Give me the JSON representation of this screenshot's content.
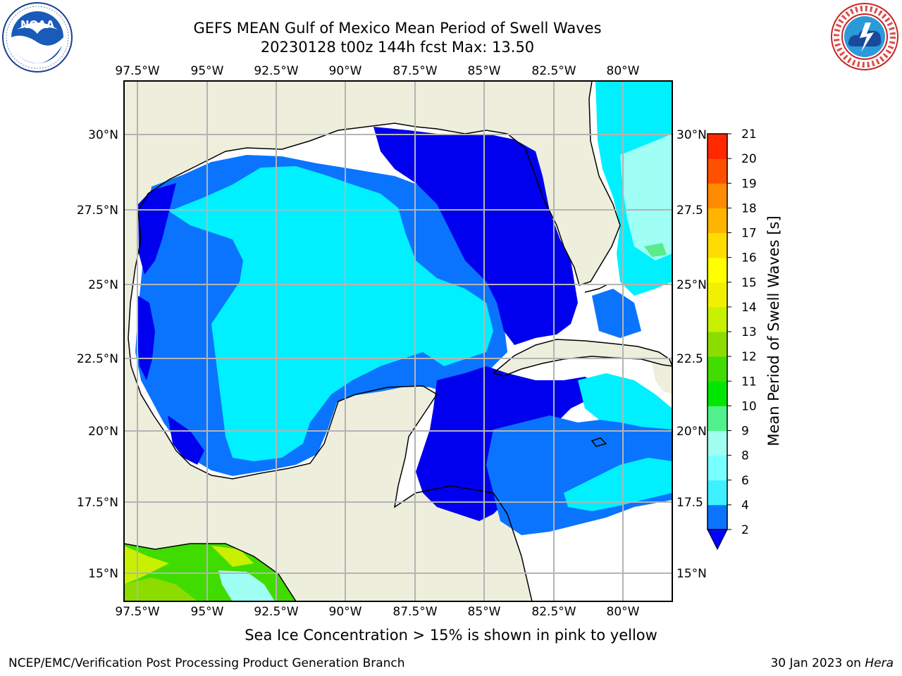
{
  "title_line1": "GEFS MEAN Gulf of Mexico Mean Period of Swell Waves",
  "title_line2": "20230128 t00z 144h fcst   Max: 13.50",
  "logos": {
    "noaa": {
      "text": "NOAA",
      "ring_text": "NATIONAL OCEANIC AND ATMOSPHERIC ADMINISTRATION · U.S. DEPARTMENT OF COMMERCE"
    },
    "nws": {
      "ring_text": "NATIONAL WEATHER SERVICE"
    }
  },
  "map": {
    "lon_labels": [
      "97.5°W",
      "95°W",
      "92.5°W",
      "90°W",
      "87.5°W",
      "85°W",
      "82.5°W",
      "80°W"
    ],
    "lat_labels_left": [
      "30°N",
      "27.5°N",
      "25°N",
      "22.5°N",
      "20°N",
      "17.5°N",
      "15°N"
    ],
    "lat_labels_right": [
      "30°N",
      "27.5",
      "25°N",
      "22.5",
      "20°N",
      "17.5",
      "15°N"
    ],
    "colors": {
      "land": "#eeeedd",
      "grid": "#b4b4b4",
      "coast": "#000000"
    }
  },
  "colorbar": {
    "title": "Mean Period of Swell Waves [s]",
    "ticks": [
      "2",
      "4",
      "6",
      "8",
      "9",
      "10",
      "11",
      "12",
      "13",
      "14",
      "15",
      "16",
      "17",
      "18",
      "19",
      "20",
      "21"
    ],
    "colors": [
      "#0a74ff",
      "#00dcff",
      "#3cf0ff",
      "#78ffff",
      "#a0fff0",
      "#50f08c",
      "#00e600",
      "#40dc00",
      "#8cdc00",
      "#c8f000",
      "#f0f000",
      "#ffff00",
      "#ffdc00",
      "#ffb400",
      "#ff8c00",
      "#ff5000",
      "#ff2800",
      "#ff0000"
    ],
    "extend_color": "#0000ff"
  },
  "bottom_note": "Sea Ice Concentration > 15% is shown in pink to yellow",
  "footer_left": "NCEP/EMC/Verification Post Processing Product Generation Branch",
  "footer_right_date": "30 Jan 2023 on",
  "footer_right_host": "Hera"
}
